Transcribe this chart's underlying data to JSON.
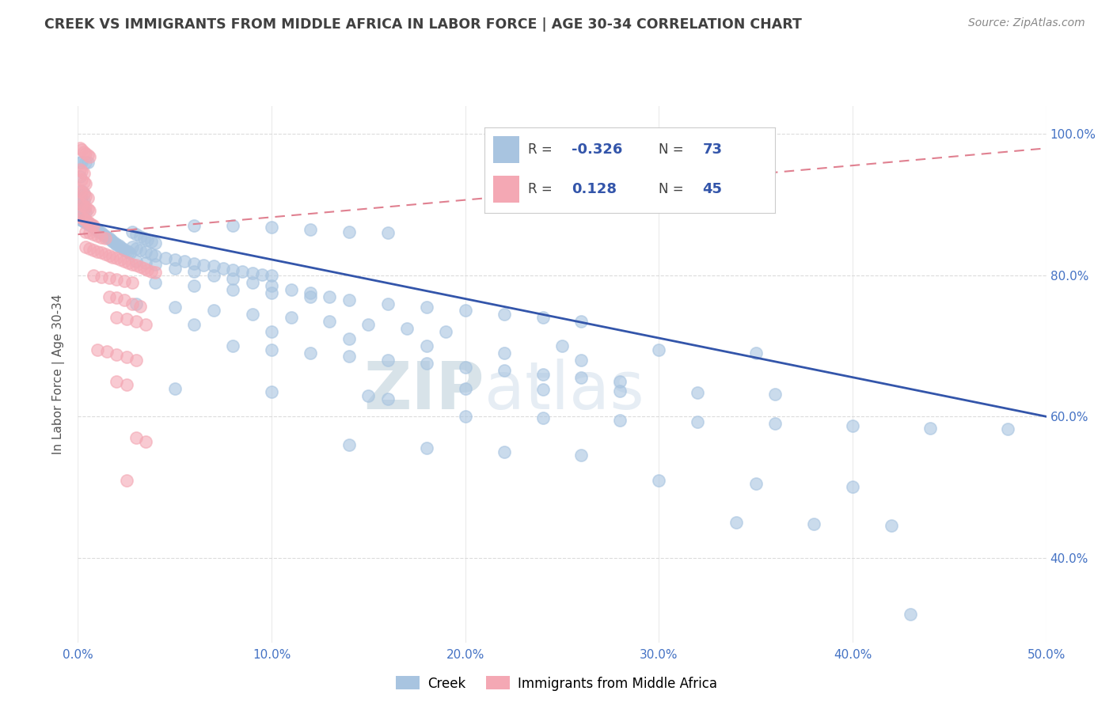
{
  "title": "CREEK VS IMMIGRANTS FROM MIDDLE AFRICA IN LABOR FORCE | AGE 30-34 CORRELATION CHART",
  "source": "Source: ZipAtlas.com",
  "ylabel": "In Labor Force | Age 30-34",
  "xlim": [
    0.0,
    0.5
  ],
  "ylim": [
    0.28,
    1.04
  ],
  "ytick_labels": [
    "40.0%",
    "60.0%",
    "80.0%",
    "100.0%"
  ],
  "ytick_values": [
    0.4,
    0.6,
    0.8,
    1.0
  ],
  "xtick_labels": [
    "0.0%",
    "10.0%",
    "20.0%",
    "30.0%",
    "40.0%",
    "50.0%"
  ],
  "xtick_values": [
    0.0,
    0.1,
    0.2,
    0.3,
    0.4,
    0.5
  ],
  "watermark": "ZIPatlas",
  "legend": {
    "creek_label": "Creek",
    "creek_color": "#a8c4e0",
    "creek_R": "-0.326",
    "creek_N": "73",
    "immigrants_label": "Immigrants from Middle Africa",
    "immigrants_color": "#f4a8b4",
    "immigrants_R": "0.128",
    "immigrants_N": "45"
  },
  "creek_scatter": [
    [
      0.001,
      0.96
    ],
    [
      0.002,
      0.96
    ],
    [
      0.004,
      0.96
    ],
    [
      0.005,
      0.96
    ],
    [
      0.001,
      0.94
    ],
    [
      0.002,
      0.92
    ],
    [
      0.003,
      0.915
    ],
    [
      0.001,
      0.91
    ],
    [
      0.002,
      0.908
    ],
    [
      0.003,
      0.905
    ],
    [
      0.001,
      0.895
    ],
    [
      0.002,
      0.893
    ],
    [
      0.003,
      0.892
    ],
    [
      0.004,
      0.89
    ],
    [
      0.001,
      0.88
    ],
    [
      0.002,
      0.878
    ],
    [
      0.003,
      0.876
    ],
    [
      0.004,
      0.875
    ],
    [
      0.005,
      0.873
    ],
    [
      0.006,
      0.872
    ],
    [
      0.007,
      0.87
    ],
    [
      0.008,
      0.868
    ],
    [
      0.009,
      0.866
    ],
    [
      0.01,
      0.864
    ],
    [
      0.011,
      0.862
    ],
    [
      0.012,
      0.86
    ],
    [
      0.013,
      0.858
    ],
    [
      0.014,
      0.856
    ],
    [
      0.015,
      0.854
    ],
    [
      0.016,
      0.852
    ],
    [
      0.017,
      0.85
    ],
    [
      0.018,
      0.848
    ],
    [
      0.019,
      0.846
    ],
    [
      0.02,
      0.844
    ],
    [
      0.021,
      0.842
    ],
    [
      0.022,
      0.84
    ],
    [
      0.023,
      0.838
    ],
    [
      0.024,
      0.836
    ],
    [
      0.025,
      0.835
    ],
    [
      0.026,
      0.833
    ],
    [
      0.027,
      0.831
    ],
    [
      0.028,
      0.862
    ],
    [
      0.03,
      0.858
    ],
    [
      0.032,
      0.855
    ],
    [
      0.034,
      0.852
    ],
    [
      0.036,
      0.85
    ],
    [
      0.038,
      0.848
    ],
    [
      0.04,
      0.846
    ],
    [
      0.028,
      0.84
    ],
    [
      0.03,
      0.838
    ],
    [
      0.032,
      0.836
    ],
    [
      0.035,
      0.833
    ],
    [
      0.038,
      0.83
    ],
    [
      0.04,
      0.828
    ],
    [
      0.045,
      0.825
    ],
    [
      0.05,
      0.822
    ],
    [
      0.055,
      0.82
    ],
    [
      0.06,
      0.817
    ],
    [
      0.065,
      0.815
    ],
    [
      0.07,
      0.813
    ],
    [
      0.075,
      0.81
    ],
    [
      0.08,
      0.808
    ],
    [
      0.085,
      0.806
    ],
    [
      0.09,
      0.803
    ],
    [
      0.095,
      0.801
    ],
    [
      0.1,
      0.8
    ],
    [
      0.03,
      0.82
    ],
    [
      0.035,
      0.818
    ],
    [
      0.04,
      0.816
    ],
    [
      0.05,
      0.81
    ],
    [
      0.06,
      0.805
    ],
    [
      0.07,
      0.8
    ],
    [
      0.08,
      0.795
    ],
    [
      0.09,
      0.79
    ],
    [
      0.1,
      0.785
    ],
    [
      0.11,
      0.78
    ],
    [
      0.12,
      0.775
    ],
    [
      0.13,
      0.77
    ],
    [
      0.06,
      0.87
    ],
    [
      0.08,
      0.87
    ],
    [
      0.1,
      0.868
    ],
    [
      0.12,
      0.865
    ],
    [
      0.14,
      0.862
    ],
    [
      0.16,
      0.86
    ],
    [
      0.04,
      0.79
    ],
    [
      0.06,
      0.785
    ],
    [
      0.08,
      0.78
    ],
    [
      0.1,
      0.775
    ],
    [
      0.12,
      0.77
    ],
    [
      0.14,
      0.765
    ],
    [
      0.16,
      0.76
    ],
    [
      0.18,
      0.755
    ],
    [
      0.2,
      0.75
    ],
    [
      0.22,
      0.745
    ],
    [
      0.24,
      0.74
    ],
    [
      0.26,
      0.735
    ],
    [
      0.03,
      0.76
    ],
    [
      0.05,
      0.755
    ],
    [
      0.07,
      0.75
    ],
    [
      0.09,
      0.745
    ],
    [
      0.11,
      0.74
    ],
    [
      0.13,
      0.735
    ],
    [
      0.15,
      0.73
    ],
    [
      0.17,
      0.725
    ],
    [
      0.19,
      0.72
    ],
    [
      0.08,
      0.7
    ],
    [
      0.1,
      0.695
    ],
    [
      0.12,
      0.69
    ],
    [
      0.14,
      0.685
    ],
    [
      0.16,
      0.68
    ],
    [
      0.18,
      0.675
    ],
    [
      0.2,
      0.67
    ],
    [
      0.22,
      0.665
    ],
    [
      0.24,
      0.66
    ],
    [
      0.26,
      0.655
    ],
    [
      0.28,
      0.65
    ],
    [
      0.06,
      0.73
    ],
    [
      0.1,
      0.72
    ],
    [
      0.14,
      0.71
    ],
    [
      0.18,
      0.7
    ],
    [
      0.22,
      0.69
    ],
    [
      0.26,
      0.68
    ],
    [
      0.05,
      0.64
    ],
    [
      0.1,
      0.635
    ],
    [
      0.15,
      0.63
    ],
    [
      0.16,
      0.625
    ],
    [
      0.25,
      0.7
    ],
    [
      0.3,
      0.695
    ],
    [
      0.35,
      0.69
    ],
    [
      0.2,
      0.64
    ],
    [
      0.24,
      0.638
    ],
    [
      0.28,
      0.636
    ],
    [
      0.32,
      0.634
    ],
    [
      0.36,
      0.632
    ],
    [
      0.2,
      0.6
    ],
    [
      0.24,
      0.598
    ],
    [
      0.28,
      0.595
    ],
    [
      0.32,
      0.592
    ],
    [
      0.36,
      0.59
    ],
    [
      0.4,
      0.587
    ],
    [
      0.44,
      0.584
    ],
    [
      0.48,
      0.582
    ],
    [
      0.14,
      0.56
    ],
    [
      0.18,
      0.555
    ],
    [
      0.22,
      0.55
    ],
    [
      0.26,
      0.545
    ],
    [
      0.3,
      0.51
    ],
    [
      0.35,
      0.505
    ],
    [
      0.4,
      0.5
    ],
    [
      0.34,
      0.45
    ],
    [
      0.38,
      0.448
    ],
    [
      0.42,
      0.446
    ],
    [
      0.43,
      0.32
    ]
  ],
  "immigrants_scatter": [
    [
      0.001,
      0.98
    ],
    [
      0.002,
      0.978
    ],
    [
      0.003,
      0.975
    ],
    [
      0.004,
      0.972
    ],
    [
      0.005,
      0.97
    ],
    [
      0.006,
      0.968
    ],
    [
      0.001,
      0.95
    ],
    [
      0.002,
      0.948
    ],
    [
      0.003,
      0.945
    ],
    [
      0.002,
      0.935
    ],
    [
      0.003,
      0.932
    ],
    [
      0.004,
      0.93
    ],
    [
      0.001,
      0.92
    ],
    [
      0.002,
      0.918
    ],
    [
      0.003,
      0.916
    ],
    [
      0.004,
      0.912
    ],
    [
      0.005,
      0.91
    ],
    [
      0.001,
      0.902
    ],
    [
      0.002,
      0.9
    ],
    [
      0.003,
      0.898
    ],
    [
      0.004,
      0.896
    ],
    [
      0.005,
      0.894
    ],
    [
      0.006,
      0.892
    ],
    [
      0.001,
      0.884
    ],
    [
      0.002,
      0.882
    ],
    [
      0.003,
      0.88
    ],
    [
      0.004,
      0.878
    ],
    [
      0.005,
      0.876
    ],
    [
      0.006,
      0.874
    ],
    [
      0.007,
      0.872
    ],
    [
      0.008,
      0.87
    ],
    [
      0.004,
      0.862
    ],
    [
      0.006,
      0.86
    ],
    [
      0.008,
      0.858
    ],
    [
      0.01,
      0.856
    ],
    [
      0.012,
      0.854
    ],
    [
      0.014,
      0.852
    ],
    [
      0.004,
      0.84
    ],
    [
      0.006,
      0.838
    ],
    [
      0.008,
      0.836
    ],
    [
      0.01,
      0.834
    ],
    [
      0.012,
      0.832
    ],
    [
      0.014,
      0.83
    ],
    [
      0.016,
      0.828
    ],
    [
      0.018,
      0.826
    ],
    [
      0.02,
      0.824
    ],
    [
      0.022,
      0.822
    ],
    [
      0.024,
      0.82
    ],
    [
      0.026,
      0.818
    ],
    [
      0.028,
      0.816
    ],
    [
      0.03,
      0.814
    ],
    [
      0.032,
      0.812
    ],
    [
      0.034,
      0.81
    ],
    [
      0.036,
      0.808
    ],
    [
      0.038,
      0.806
    ],
    [
      0.04,
      0.804
    ],
    [
      0.008,
      0.8
    ],
    [
      0.012,
      0.798
    ],
    [
      0.016,
      0.796
    ],
    [
      0.02,
      0.794
    ],
    [
      0.024,
      0.792
    ],
    [
      0.028,
      0.79
    ],
    [
      0.016,
      0.77
    ],
    [
      0.02,
      0.768
    ],
    [
      0.024,
      0.765
    ],
    [
      0.028,
      0.76
    ],
    [
      0.032,
      0.756
    ],
    [
      0.02,
      0.74
    ],
    [
      0.025,
      0.738
    ],
    [
      0.03,
      0.735
    ],
    [
      0.035,
      0.73
    ],
    [
      0.01,
      0.695
    ],
    [
      0.015,
      0.692
    ],
    [
      0.02,
      0.688
    ],
    [
      0.025,
      0.684
    ],
    [
      0.03,
      0.68
    ],
    [
      0.02,
      0.65
    ],
    [
      0.025,
      0.645
    ],
    [
      0.03,
      0.57
    ],
    [
      0.035,
      0.565
    ],
    [
      0.025,
      0.51
    ]
  ],
  "creek_line": {
    "x": [
      0.0,
      0.5
    ],
    "y": [
      0.878,
      0.6
    ]
  },
  "immigrants_line": {
    "x": [
      0.0,
      0.5
    ],
    "y": [
      0.858,
      0.98
    ]
  },
  "background_color": "#ffffff",
  "scatter_size": 120,
  "creek_dot_color": "#a8c4e0",
  "immigrants_dot_color": "#f4a8b4",
  "creek_line_color": "#3355aa",
  "immigrants_line_color": "#e08090",
  "title_color": "#404040",
  "axis_color": "#4472c4",
  "grid_color": "#d8d8d8",
  "watermark_color": "#c8d8e8"
}
